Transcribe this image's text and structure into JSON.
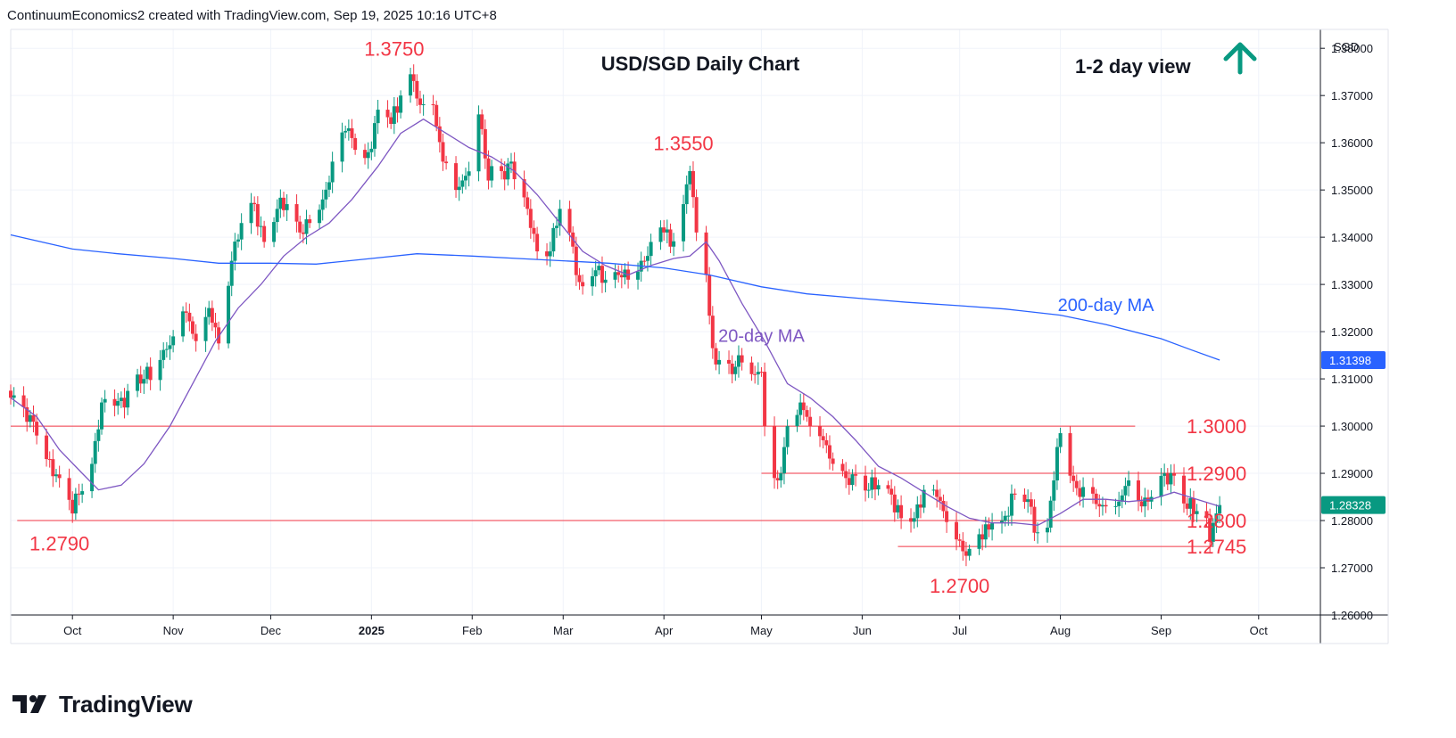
{
  "header": {
    "attribution": "ContinuumEconomics2 created with TradingView.com, Sep 19, 2025 10:16 UTC+8"
  },
  "footer": {
    "brand": "TradingView"
  },
  "colors": {
    "up": "#089981",
    "down": "#f23645",
    "ma20": "#7e57c2",
    "ma200": "#2962ff",
    "level": "#f23645",
    "annotation_red": "#f23645",
    "annotation_blue": "#2962ff",
    "arrow": "#089981",
    "axis_badge": "#2962ff",
    "price_badge": "#089981"
  },
  "chart_data": {
    "type": "candlestick",
    "title": "USD/SGD Daily Chart",
    "view_label": "1-2 day view",
    "view_direction": "up-arrow-icon",
    "currency": "SGD",
    "ylim": [
      1.26,
      1.384
    ],
    "y_ticks": [
      "1.26000",
      "1.27000",
      "1.28000",
      "1.29000",
      "1.30000",
      "1.31000",
      "1.32000",
      "1.33000",
      "1.34000",
      "1.35000",
      "1.36000",
      "1.37000",
      "1.38000"
    ],
    "x_ticks": [
      {
        "label": "Oct",
        "date": "2024-10-01"
      },
      {
        "label": "Nov",
        "date": "2024-11-01"
      },
      {
        "label": "Dec",
        "date": "2024-12-01"
      },
      {
        "label": "2025",
        "date": "2025-01-01",
        "bold": true
      },
      {
        "label": "Feb",
        "date": "2025-02-01"
      },
      {
        "label": "Mar",
        "date": "2025-03-01"
      },
      {
        "label": "Apr",
        "date": "2025-04-01"
      },
      {
        "label": "May",
        "date": "2025-05-01"
      },
      {
        "label": "Jun",
        "date": "2025-06-01"
      },
      {
        "label": "Jul",
        "date": "2025-07-01"
      },
      {
        "label": "Aug",
        "date": "2025-08-01"
      },
      {
        "label": "Sep",
        "date": "2025-09-01"
      },
      {
        "label": "Oct",
        "date": "2025-10-01"
      }
    ],
    "x_range": [
      "2024-09-12",
      "2025-10-20"
    ],
    "last_price": {
      "label": "1.28328",
      "value": 1.28328
    },
    "ma200_last": {
      "label": "1.31398",
      "value": 1.31398
    },
    "series": [
      {
        "name": "20-day MA",
        "points": [
          [
            "2024-09-12",
            1.306
          ],
          [
            "2024-09-20",
            1.302
          ],
          [
            "2024-09-27",
            1.295
          ],
          [
            "2024-10-04",
            1.29
          ],
          [
            "2024-10-09",
            1.2865
          ],
          [
            "2024-10-16",
            1.2875
          ],
          [
            "2024-10-23",
            1.292
          ],
          [
            "2024-10-31",
            1.3
          ],
          [
            "2024-11-07",
            1.309
          ],
          [
            "2024-11-14",
            1.318
          ],
          [
            "2024-11-21",
            1.325
          ],
          [
            "2024-11-28",
            1.33
          ],
          [
            "2024-12-05",
            1.336
          ],
          [
            "2024-12-12",
            1.34
          ],
          [
            "2024-12-19",
            1.343
          ],
          [
            "2024-12-26",
            1.348
          ],
          [
            "2025-01-03",
            1.355
          ],
          [
            "2025-01-10",
            1.362
          ],
          [
            "2025-01-17",
            1.365
          ],
          [
            "2025-01-24",
            1.362
          ],
          [
            "2025-01-31",
            1.359
          ],
          [
            "2025-02-07",
            1.357
          ],
          [
            "2025-02-14",
            1.354
          ],
          [
            "2025-02-21",
            1.349
          ],
          [
            "2025-02-28",
            1.343
          ],
          [
            "2025-03-07",
            1.337
          ],
          [
            "2025-03-14",
            1.334
          ],
          [
            "2025-03-21",
            1.332
          ],
          [
            "2025-03-28",
            1.334
          ],
          [
            "2025-04-04",
            1.3355
          ],
          [
            "2025-04-09",
            1.336
          ],
          [
            "2025-04-14",
            1.339
          ],
          [
            "2025-04-18",
            1.335
          ],
          [
            "2025-04-25",
            1.326
          ],
          [
            "2025-05-02",
            1.318
          ],
          [
            "2025-05-09",
            1.309
          ],
          [
            "2025-05-16",
            1.306
          ],
          [
            "2025-05-23",
            1.302
          ],
          [
            "2025-05-30",
            1.297
          ],
          [
            "2025-06-06",
            1.2915
          ],
          [
            "2025-06-13",
            1.289
          ],
          [
            "2025-06-20",
            1.286
          ],
          [
            "2025-06-27",
            1.283
          ],
          [
            "2025-07-04",
            1.2805
          ],
          [
            "2025-07-11",
            1.2795
          ],
          [
            "2025-07-18",
            1.2795
          ],
          [
            "2025-07-25",
            1.279
          ],
          [
            "2025-08-01",
            1.2815
          ],
          [
            "2025-08-08",
            1.2845
          ],
          [
            "2025-08-15",
            1.2845
          ],
          [
            "2025-08-22",
            1.284
          ],
          [
            "2025-08-29",
            1.2845
          ],
          [
            "2025-09-05",
            1.286
          ],
          [
            "2025-09-12",
            1.2845
          ],
          [
            "2025-09-19",
            1.283
          ]
        ]
      },
      {
        "name": "200-day MA",
        "points": [
          [
            "2024-09-12",
            1.3405
          ],
          [
            "2024-10-01",
            1.3375
          ],
          [
            "2024-10-15",
            1.3365
          ],
          [
            "2024-11-01",
            1.3355
          ],
          [
            "2024-11-15",
            1.3345
          ],
          [
            "2024-12-01",
            1.3345
          ],
          [
            "2024-12-15",
            1.3343
          ],
          [
            "2025-01-01",
            1.3355
          ],
          [
            "2025-01-15",
            1.3365
          ],
          [
            "2025-02-01",
            1.336
          ],
          [
            "2025-02-15",
            1.3355
          ],
          [
            "2025-03-01",
            1.335
          ],
          [
            "2025-03-15",
            1.3345
          ],
          [
            "2025-04-01",
            1.3335
          ],
          [
            "2025-04-15",
            1.332
          ],
          [
            "2025-05-01",
            1.3295
          ],
          [
            "2025-05-15",
            1.328
          ],
          [
            "2025-06-01",
            1.327
          ],
          [
            "2025-06-15",
            1.3262
          ],
          [
            "2025-07-01",
            1.3255
          ],
          [
            "2025-07-15",
            1.3248
          ],
          [
            "2025-08-01",
            1.3235
          ],
          [
            "2025-08-15",
            1.3215
          ],
          [
            "2025-09-01",
            1.3185
          ],
          [
            "2025-09-10",
            1.3162
          ],
          [
            "2025-09-19",
            1.31398
          ]
        ]
      }
    ],
    "ohlc_anchors": [
      [
        "2024-09-12",
        1.306
      ],
      [
        "2024-09-16",
        1.304
      ],
      [
        "2024-09-20",
        1.298
      ],
      [
        "2024-09-24",
        1.293
      ],
      [
        "2024-09-27",
        1.289
      ],
      [
        "2024-10-01",
        1.2815
      ],
      [
        "2024-10-03",
        1.2855
      ],
      [
        "2024-10-07",
        1.292
      ],
      [
        "2024-10-10",
        1.305
      ],
      [
        "2024-10-16",
        1.306
      ],
      [
        "2024-10-22",
        1.309
      ],
      [
        "2024-10-28",
        1.314
      ],
      [
        "2024-11-01",
        1.319
      ],
      [
        "2024-11-05",
        1.324
      ],
      [
        "2024-11-08",
        1.318
      ],
      [
        "2024-11-12",
        1.325
      ],
      [
        "2024-11-15",
        1.3175
      ],
      [
        "2024-11-19",
        1.335
      ],
      [
        "2024-11-22",
        1.343
      ],
      [
        "2024-11-26",
        1.347
      ],
      [
        "2024-11-29",
        1.339
      ],
      [
        "2024-12-03",
        1.346
      ],
      [
        "2024-12-06",
        1.347
      ],
      [
        "2024-12-10",
        1.341
      ],
      [
        "2024-12-13",
        1.343
      ],
      [
        "2024-12-17",
        1.348
      ],
      [
        "2024-12-20",
        1.356
      ],
      [
        "2024-12-24",
        1.3625
      ],
      [
        "2024-12-27",
        1.3585
      ],
      [
        "2024-12-31",
        1.358
      ],
      [
        "2025-01-03",
        1.367
      ],
      [
        "2025-01-07",
        1.364
      ],
      [
        "2025-01-10",
        1.37
      ],
      [
        "2025-01-13",
        1.3745
      ],
      [
        "2025-01-16",
        1.368
      ],
      [
        "2025-01-20",
        1.368
      ],
      [
        "2025-01-23",
        1.356
      ],
      [
        "2025-01-27",
        1.35
      ],
      [
        "2025-01-30",
        1.353
      ],
      [
        "2025-02-03",
        1.366
      ],
      [
        "2025-02-06",
        1.352
      ],
      [
        "2025-02-10",
        1.354
      ],
      [
        "2025-02-13",
        1.356
      ],
      [
        "2025-02-18",
        1.346
      ],
      [
        "2025-02-21",
        1.337
      ],
      [
        "2025-02-25",
        1.337
      ],
      [
        "2025-02-28",
        1.346
      ],
      [
        "2025-03-04",
        1.338
      ],
      [
        "2025-03-06",
        1.3305
      ],
      [
        "2025-03-11",
        1.333
      ],
      [
        "2025-03-14",
        1.331
      ],
      [
        "2025-03-18",
        1.332
      ],
      [
        "2025-03-21",
        1.331
      ],
      [
        "2025-03-25",
        1.335
      ],
      [
        "2025-03-28",
        1.339
      ],
      [
        "2025-04-01",
        1.341
      ],
      [
        "2025-04-03",
        1.338
      ],
      [
        "2025-04-07",
        1.347
      ],
      [
        "2025-04-09",
        1.354
      ],
      [
        "2025-04-11",
        1.341
      ],
      [
        "2025-04-14",
        1.332
      ],
      [
        "2025-04-16",
        1.3165
      ],
      [
        "2025-04-18",
        1.314
      ],
      [
        "2025-04-22",
        1.311
      ],
      [
        "2025-04-24",
        1.315
      ],
      [
        "2025-04-28",
        1.311
      ],
      [
        "2025-05-01",
        1.3115
      ],
      [
        "2025-05-02",
        1.3
      ],
      [
        "2025-05-05",
        1.289
      ],
      [
        "2025-05-07",
        1.29
      ],
      [
        "2025-05-09",
        1.3
      ],
      [
        "2025-05-13",
        1.305
      ],
      [
        "2025-05-16",
        1.3
      ],
      [
        "2025-05-20",
        1.297
      ],
      [
        "2025-05-23",
        1.292
      ],
      [
        "2025-05-27",
        1.289
      ],
      [
        "2025-05-30",
        1.2895
      ],
      [
        "2025-06-03",
        1.2865
      ],
      [
        "2025-06-06",
        1.2875
      ],
      [
        "2025-06-10",
        1.2855
      ],
      [
        "2025-06-13",
        1.2805
      ],
      [
        "2025-06-17",
        1.2805
      ],
      [
        "2025-06-20",
        1.2865
      ],
      [
        "2025-06-24",
        1.285
      ],
      [
        "2025-06-26",
        1.282
      ],
      [
        "2025-06-30",
        1.276
      ],
      [
        "2025-07-02",
        1.2735
      ],
      [
        "2025-07-04",
        1.274
      ],
      [
        "2025-07-08",
        1.276
      ],
      [
        "2025-07-11",
        1.2795
      ],
      [
        "2025-07-15",
        1.281
      ],
      [
        "2025-07-18",
        1.2855
      ],
      [
        "2025-07-22",
        1.2845
      ],
      [
        "2025-07-25",
        1.2775
      ],
      [
        "2025-07-28",
        1.2785
      ],
      [
        "2025-07-30",
        1.2885
      ],
      [
        "2025-08-01",
        1.2985
      ],
      [
        "2025-08-04",
        1.2895
      ],
      [
        "2025-08-07",
        1.285
      ],
      [
        "2025-08-12",
        1.2835
      ],
      [
        "2025-08-15",
        1.283
      ],
      [
        "2025-08-19",
        1.284
      ],
      [
        "2025-08-22",
        1.2885
      ],
      [
        "2025-08-26",
        1.283
      ],
      [
        "2025-08-29",
        1.285
      ],
      [
        "2025-09-02",
        1.29
      ],
      [
        "2025-09-05",
        1.2895
      ],
      [
        "2025-09-09",
        1.2825
      ],
      [
        "2025-09-12",
        1.282
      ],
      [
        "2025-09-15",
        1.2805
      ],
      [
        "2025-09-16",
        1.2755
      ],
      [
        "2025-09-17",
        1.2795
      ],
      [
        "2025-09-18",
        1.2815
      ],
      [
        "2025-09-19",
        1.28328
      ]
    ],
    "levels": [
      {
        "label": "1.3000",
        "value": 1.3,
        "from": "2024-09-12",
        "to": "2025-08-24"
      },
      {
        "label": "1.2900",
        "value": 1.29,
        "from": "2025-05-01",
        "to": "2025-09-17"
      },
      {
        "label": "1.2800",
        "value": 1.28,
        "from": "2024-09-14",
        "to": "2025-09-17"
      },
      {
        "label": "1.2745",
        "value": 1.2745,
        "from": "2025-06-12",
        "to": "2025-09-17"
      }
    ],
    "annotations": [
      {
        "text": "1.3750",
        "value": 1.375,
        "date": "2025-01-08",
        "color": "red"
      },
      {
        "text": "1.3550",
        "value": 1.355,
        "date": "2025-04-07",
        "color": "red"
      },
      {
        "text": "1.2790",
        "value": 1.279,
        "date": "2024-09-27",
        "color": "red"
      },
      {
        "text": "1.2700",
        "value": 1.27,
        "date": "2025-07-01",
        "color": "red"
      },
      {
        "text": "1.3000",
        "value": 1.3,
        "date": "2025-09-12",
        "color": "red"
      },
      {
        "text": "1.2900",
        "value": 1.29,
        "date": "2025-09-12",
        "color": "red"
      },
      {
        "text": "1.2800",
        "value": 1.28,
        "date": "2025-09-12",
        "color": "red"
      },
      {
        "text": "1.2745",
        "value": 1.2745,
        "date": "2025-09-12",
        "color": "red"
      },
      {
        "text": "20-day MA",
        "value": 1.319,
        "date": "2025-05-01",
        "color": "purple"
      },
      {
        "text": "200-day MA",
        "value": 1.3255,
        "date": "2025-08-15",
        "color": "blue"
      }
    ]
  }
}
